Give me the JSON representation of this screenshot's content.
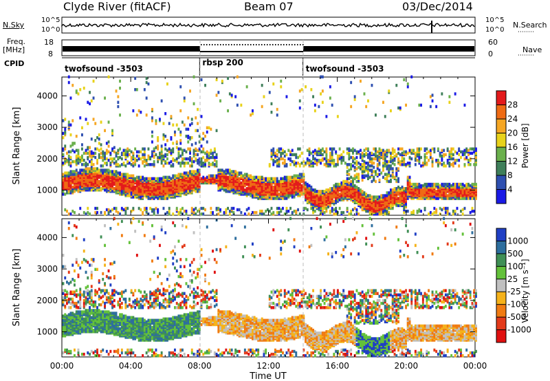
{
  "header": {
    "station": "Clyde River (fitACF)",
    "beam": "Beam 07",
    "date": "03/Dec/2014"
  },
  "top_panels": {
    "nsky_label": "N.Sky",
    "nsearch_label": "N.Search",
    "nsky_ticks": [
      "10^5",
      "10^0"
    ],
    "nsearch_ticks": [
      "10^5",
      "10^0"
    ],
    "freq_label": "Freq.",
    "freq_unit": "[MHz]",
    "freq_ticks": [
      "18",
      "8"
    ],
    "nave_label": "Nave",
    "nave_ticks": [
      "60",
      "0"
    ],
    "cpid_label": "CPID",
    "cpid_segments": [
      {
        "name": "twofsound -3503",
        "start_hour": 0,
        "end_hour": 8
      },
      {
        "name": "rbsp 200",
        "start_hour": 8,
        "end_hour": 14
      },
      {
        "name": "twofsound -3503",
        "start_hour": 14,
        "end_hour": 24
      }
    ]
  },
  "chart_data": [
    {
      "type": "heatmap",
      "name": "power",
      "xlabel": "",
      "ylabel": "Slant Range [km]",
      "y_ticks": [
        "1000",
        "2000",
        "3000",
        "4000"
      ],
      "ylim": [
        200,
        4600
      ],
      "colorbar_label": "Power [dB]",
      "colorbar_ticks": [
        "4",
        "8",
        "12",
        "16",
        "20",
        "24",
        "28"
      ],
      "colors": [
        "#1a1ae6",
        "#2e4fb0",
        "#3f7f5a",
        "#6ab04c",
        "#e8d21a",
        "#f5a623",
        "#ef6b14",
        "#e31a1c"
      ]
    },
    {
      "type": "heatmap",
      "name": "velocity",
      "xlabel": "Time UT",
      "ylabel": "Slant Range [km]",
      "y_ticks": [
        "1000",
        "2000",
        "3000",
        "4000"
      ],
      "ylim": [
        200,
        4600
      ],
      "x_ticks": [
        "00:00",
        "04:00",
        "08:00",
        "12:00",
        "16:00",
        "20:00",
        "00:00"
      ],
      "xlim_hours": [
        0,
        24
      ],
      "colorbar_label": "Velocity [m s⁻¹]",
      "colorbar_ticks": [
        "1000",
        "500",
        "100",
        "25",
        "-25",
        "-100",
        "-500",
        "-1000"
      ],
      "colors": [
        "#1f3fc4",
        "#2d6e9e",
        "#3f8f55",
        "#63c13a",
        "#c0c0c0",
        "#f5b21a",
        "#f07b12",
        "#e33a1a",
        "#e01010"
      ]
    }
  ]
}
